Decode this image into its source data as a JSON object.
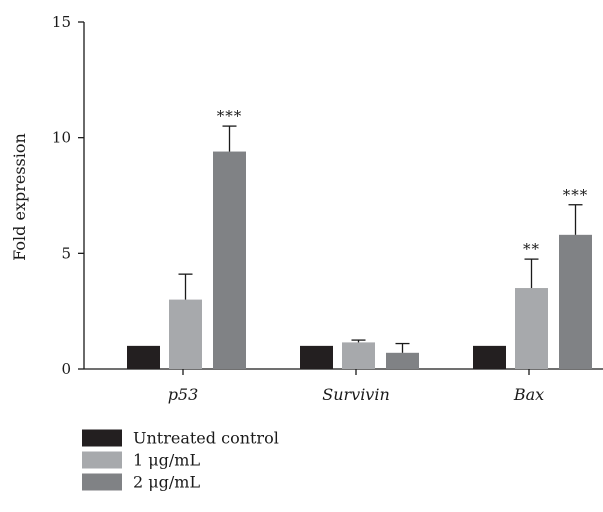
{
  "chart_data": {
    "type": "bar",
    "ylabel": "Fold expression",
    "xlabel": "",
    "ylim": [
      0,
      15
    ],
    "yticks": [
      0,
      5,
      10,
      15
    ],
    "categories": [
      "p53",
      "Survivin",
      "Bax"
    ],
    "series": [
      {
        "name": "Untreated control",
        "values": [
          1.0,
          1.0,
          1.0
        ],
        "errors": [
          0,
          0,
          0
        ],
        "color": "#231f20"
      },
      {
        "name": "1 μg/mL",
        "values": [
          3.0,
          1.15,
          3.5
        ],
        "errors": [
          1.1,
          0.1,
          1.25
        ],
        "color": "#a7a9ac"
      },
      {
        "name": "2 μg/mL",
        "values": [
          9.4,
          0.7,
          5.8
        ],
        "errors": [
          1.1,
          0.4,
          1.3
        ],
        "color": "#808285"
      }
    ],
    "annotations": [
      {
        "category": "p53",
        "series": "2 μg/mL",
        "text": "***"
      },
      {
        "category": "Bax",
        "series": "1 μg/mL",
        "text": "**"
      },
      {
        "category": "Bax",
        "series": "2 μg/mL",
        "text": "***"
      }
    ],
    "legend_position": "bottom-left"
  }
}
